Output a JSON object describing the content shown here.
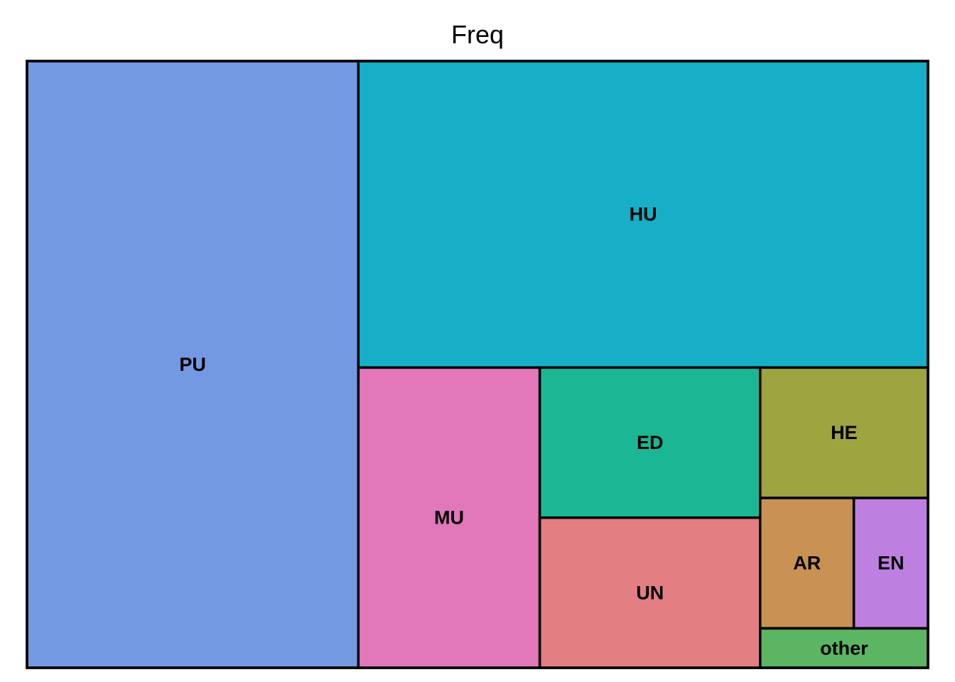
{
  "chart_data": {
    "type": "treemap",
    "title": "Freq",
    "categories": [
      "PU",
      "HU",
      "MU",
      "ED",
      "UN",
      "HE",
      "AR",
      "EN",
      "other"
    ],
    "values": [
      395,
      343,
      107,
      65,
      65,
      43,
      24,
      19,
      13
    ],
    "colors": [
      "#7499E3",
      "#17AFC7",
      "#E277B9",
      "#1BB795",
      "#E37E83",
      "#9EA43F",
      "#C99154",
      "#BE80E0",
      "#5CB562"
    ]
  }
}
